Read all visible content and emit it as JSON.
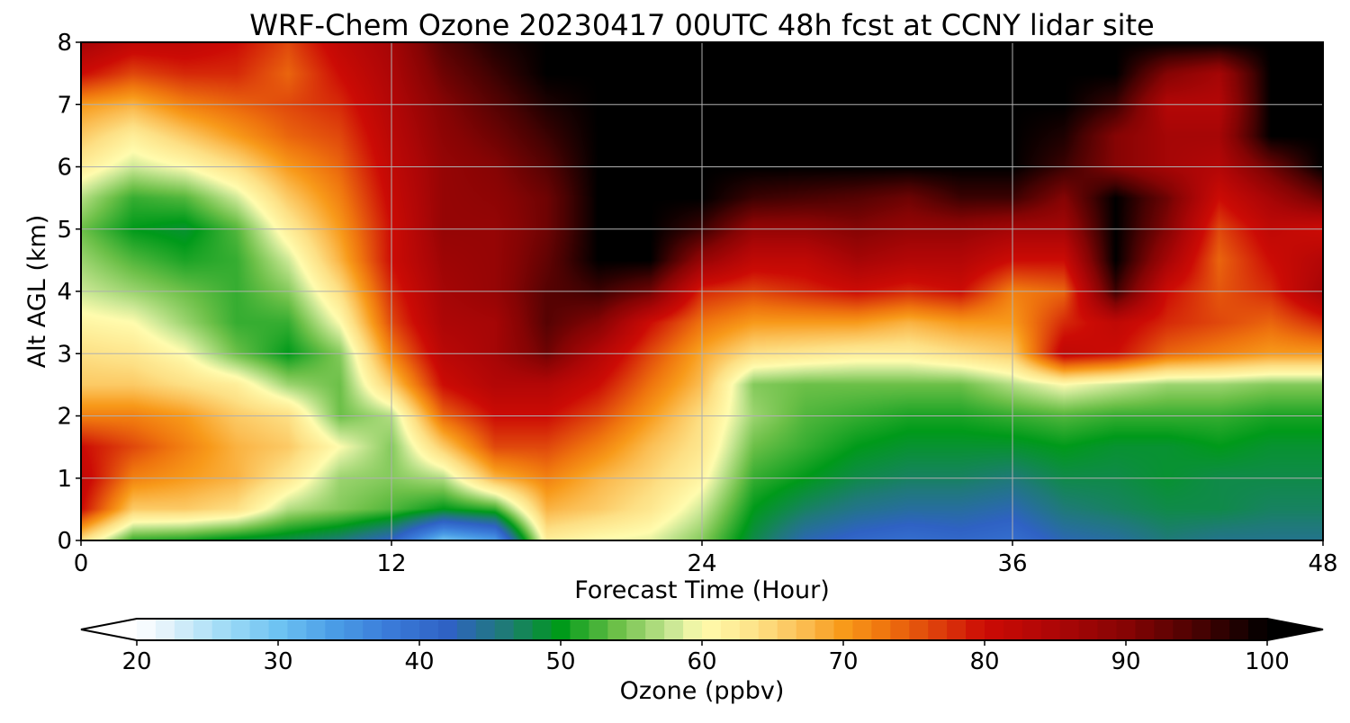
{
  "chart_data": {
    "type": "heatmap",
    "title": "WRF-Chem Ozone  20230417 00UTC 48h fcst at CCNY lidar site",
    "xlabel": "Forecast Time (Hour)",
    "ylabel": "Alt AGL (km)",
    "xlim": [
      0,
      48
    ],
    "ylim": [
      0,
      8
    ],
    "x_ticks": [
      "0",
      "12",
      "24",
      "36",
      "48"
    ],
    "y_ticks": [
      "0",
      "1",
      "2",
      "3",
      "4",
      "5",
      "6",
      "7",
      "8"
    ],
    "grid": true,
    "x": [
      0,
      2,
      4,
      6,
      8,
      10,
      12,
      14,
      16,
      18,
      20,
      22,
      24,
      26,
      28,
      30,
      32,
      34,
      36,
      38,
      40,
      42,
      44,
      46,
      48
    ],
    "y": [
      0,
      0.5,
      1,
      1.5,
      2,
      2.5,
      3,
      3.5,
      4,
      4.5,
      5,
      5.5,
      6,
      6.5,
      7,
      7.5,
      8
    ],
    "z_rows_by_altitude": [
      [
        64,
        52,
        51,
        49,
        48,
        46,
        42,
        30,
        34,
        62,
        60,
        59,
        55,
        48,
        43,
        41,
        40,
        41,
        40,
        43,
        44,
        46,
        45,
        45,
        45
      ],
      [
        80,
        66,
        66,
        64,
        57,
        55,
        53,
        50,
        52,
        68,
        66,
        63,
        58,
        50,
        47,
        45,
        44,
        44,
        43,
        46,
        47,
        48,
        48,
        47,
        47
      ],
      [
        82,
        72,
        70,
        68,
        63,
        56,
        55,
        57,
        68,
        72,
        68,
        65,
        61,
        52,
        50,
        48,
        47,
        47,
        46,
        48,
        48,
        49,
        48,
        48,
        48
      ],
      [
        80,
        76,
        72,
        68,
        66,
        60,
        55,
        66,
        76,
        76,
        72,
        67,
        63,
        54,
        52,
        50,
        49,
        49,
        49,
        50,
        49,
        49,
        50,
        49,
        49
      ],
      [
        72,
        72,
        70,
        66,
        64,
        54,
        57,
        74,
        80,
        80,
        76,
        70,
        64,
        56,
        53,
        52,
        51,
        51,
        52,
        53,
        52,
        52,
        52,
        51,
        51
      ],
      [
        66,
        66,
        64,
        62,
        56,
        54,
        66,
        80,
        84,
        84,
        80,
        73,
        67,
        55,
        54,
        54,
        54,
        54,
        57,
        60,
        58,
        56,
        56,
        55,
        55
      ],
      [
        64,
        63,
        60,
        54,
        50,
        55,
        72,
        83,
        86,
        92,
        84,
        76,
        69,
        64,
        63,
        62,
        62,
        64,
        66,
        82,
        80,
        74,
        72,
        70,
        70
      ],
      [
        61,
        60,
        56,
        52,
        52,
        60,
        76,
        85,
        86,
        94,
        90,
        80,
        73,
        70,
        70,
        70,
        68,
        70,
        70,
        78,
        82,
        78,
        76,
        74,
        78
      ],
      [
        58,
        56,
        54,
        52,
        55,
        64,
        78,
        86,
        88,
        94,
        96,
        92,
        78,
        76,
        78,
        80,
        78,
        80,
        72,
        74,
        96,
        80,
        75,
        78,
        86
      ],
      [
        56,
        53,
        51,
        52,
        58,
        68,
        80,
        87,
        88,
        93,
        100,
        100,
        88,
        82,
        82,
        86,
        84,
        84,
        80,
        80,
        100,
        86,
        74,
        80,
        84
      ],
      [
        54,
        50,
        49,
        53,
        62,
        70,
        80,
        88,
        88,
        92,
        100,
        100,
        96,
        88,
        88,
        90,
        88,
        88,
        86,
        86,
        100,
        90,
        76,
        82,
        80
      ],
      [
        57,
        52,
        53,
        58,
        66,
        72,
        81,
        88,
        89,
        92,
        100,
        100,
        100,
        96,
        95,
        94,
        92,
        96,
        96,
        90,
        100,
        92,
        80,
        86,
        92
      ],
      [
        62,
        58,
        60,
        64,
        70,
        74,
        82,
        88,
        90,
        94,
        100,
        100,
        100,
        100,
        100,
        100,
        100,
        100,
        100,
        96,
        90,
        86,
        84,
        92,
        100
      ],
      [
        66,
        62,
        66,
        70,
        74,
        76,
        83,
        89,
        92,
        96,
        100,
        100,
        100,
        100,
        100,
        100,
        100,
        100,
        100,
        98,
        90,
        86,
        86,
        100,
        100
      ],
      [
        70,
        68,
        72,
        74,
        76,
        78,
        84,
        90,
        94,
        98,
        100,
        100,
        100,
        100,
        100,
        100,
        100,
        100,
        100,
        100,
        96,
        84,
        84,
        100,
        100
      ],
      [
        80,
        76,
        78,
        78,
        74,
        80,
        85,
        92,
        96,
        100,
        100,
        100,
        100,
        100,
        100,
        100,
        100,
        100,
        100,
        100,
        100,
        90,
        86,
        100,
        100
      ],
      [
        86,
        82,
        82,
        80,
        76,
        82,
        86,
        94,
        98,
        100,
        100,
        100,
        100,
        100,
        100,
        100,
        100,
        100,
        100,
        100,
        100,
        100,
        100,
        100,
        100
      ]
    ],
    "colorbar": {
      "label": "Ozone  (ppbv)",
      "min": 20,
      "max": 100,
      "extend": "both",
      "ticks": [
        "20",
        "30",
        "40",
        "50",
        "60",
        "70",
        "80",
        "90",
        "100"
      ],
      "stops": [
        {
          "v": 20,
          "c": "#ffffff"
        },
        {
          "v": 22,
          "c": "#e4f3fb"
        },
        {
          "v": 26,
          "c": "#a3dcf6"
        },
        {
          "v": 30,
          "c": "#6ec3f2"
        },
        {
          "v": 34,
          "c": "#4a9ce6"
        },
        {
          "v": 38,
          "c": "#3a7ad8"
        },
        {
          "v": 42,
          "c": "#2f62c4"
        },
        {
          "v": 46,
          "c": "#1f7a78"
        },
        {
          "v": 50,
          "c": "#009a1a"
        },
        {
          "v": 54,
          "c": "#6cc048"
        },
        {
          "v": 58,
          "c": "#cce896"
        },
        {
          "v": 60,
          "c": "#fffcae"
        },
        {
          "v": 64,
          "c": "#fde085"
        },
        {
          "v": 67,
          "c": "#fbbf55"
        },
        {
          "v": 70,
          "c": "#f89a1a"
        },
        {
          "v": 73,
          "c": "#ef740e"
        },
        {
          "v": 76,
          "c": "#e0480c"
        },
        {
          "v": 80,
          "c": "#cc0b05"
        },
        {
          "v": 85,
          "c": "#ad0606"
        },
        {
          "v": 90,
          "c": "#860404"
        },
        {
          "v": 95,
          "c": "#4a0202"
        },
        {
          "v": 100,
          "c": "#000000"
        }
      ]
    }
  }
}
